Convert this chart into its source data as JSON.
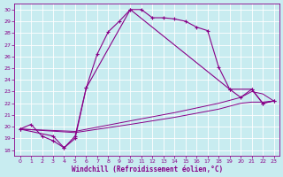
{
  "xlabel": "Windchill (Refroidissement éolien,°C)",
  "bg_color": "#c8ecf0",
  "line_color": "#880088",
  "grid_color": "#ffffff",
  "xlim": [
    -0.5,
    23.5
  ],
  "ylim": [
    17.5,
    30.5
  ],
  "xticks": [
    0,
    1,
    2,
    3,
    4,
    5,
    6,
    7,
    8,
    9,
    10,
    11,
    12,
    13,
    14,
    15,
    16,
    17,
    18,
    19,
    20,
    21,
    22,
    23
  ],
  "yticks": [
    18,
    19,
    20,
    21,
    22,
    23,
    24,
    25,
    26,
    27,
    28,
    29,
    30
  ],
  "curve1_x": [
    0,
    1,
    2,
    3,
    4,
    5,
    6,
    7,
    8,
    9,
    10,
    11,
    12,
    13,
    14,
    15,
    16,
    17,
    18,
    19,
    20,
    21,
    22,
    23
  ],
  "curve1_y": [
    19.8,
    20.2,
    19.2,
    18.8,
    18.2,
    19.2,
    23.3,
    26.2,
    28.1,
    29.0,
    30.0,
    30.0,
    29.3,
    29.3,
    29.2,
    29.0,
    28.5,
    28.2,
    25.1,
    23.2,
    22.5,
    23.2,
    22.0,
    22.2
  ],
  "curve2_x": [
    0,
    3,
    4,
    5,
    6,
    10,
    19,
    21,
    22,
    23
  ],
  "curve2_y": [
    19.8,
    19.2,
    18.2,
    19.0,
    23.3,
    30.0,
    23.2,
    23.2,
    22.0,
    22.2
  ],
  "line3_x": [
    0,
    5,
    10,
    14,
    18,
    20,
    21,
    22,
    23
  ],
  "line3_y": [
    19.8,
    19.6,
    20.5,
    21.2,
    22.0,
    22.5,
    23.0,
    22.8,
    22.2
  ],
  "line4_x": [
    0,
    5,
    10,
    14,
    18,
    20,
    21,
    22,
    23
  ],
  "line4_y": [
    19.8,
    19.5,
    20.2,
    20.8,
    21.5,
    22.0,
    22.1,
    22.1,
    22.2
  ]
}
